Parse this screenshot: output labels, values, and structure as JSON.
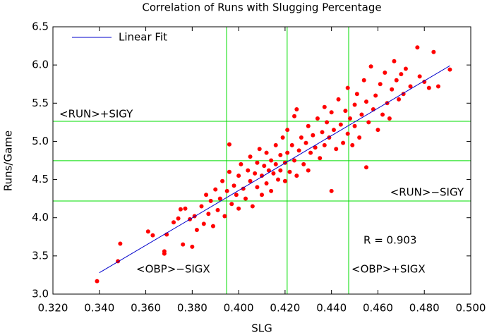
{
  "chart_data": {
    "type": "scatter",
    "title": "Correlation of Runs with Slugging Percentage",
    "x_label": "SLG",
    "y_label": "Runs/Game",
    "xlim": [
      0.32,
      0.5
    ],
    "ylim": [
      3.0,
      6.5
    ],
    "xticks": [
      {
        "value": 0.32,
        "label": "0.320"
      },
      {
        "value": 0.34,
        "label": "0.340"
      },
      {
        "value": 0.36,
        "label": "0.360"
      },
      {
        "value": 0.38,
        "label": "0.380"
      },
      {
        "value": 0.4,
        "label": "0.400"
      },
      {
        "value": 0.42,
        "label": "0.420"
      },
      {
        "value": 0.44,
        "label": "0.440"
      },
      {
        "value": 0.46,
        "label": "0.460"
      },
      {
        "value": 0.48,
        "label": "0.480"
      },
      {
        "value": 0.5,
        "label": "0.500"
      }
    ],
    "yticks": [
      {
        "value": 3,
        "label": "3.0"
      },
      3.5,
      {
        "value": 4,
        "label": "4.0"
      },
      4.5,
      {
        "value": 5,
        "label": "5.0"
      },
      5.5,
      {
        "value": 6,
        "label": "6.0"
      },
      6.5
    ],
    "color": "#ff0000",
    "x": [
      0.339,
      0.348,
      0.349,
      0.361,
      0.363,
      0.368,
      0.368,
      0.369,
      0.372,
      0.374,
      0.375,
      0.377,
      0.376,
      0.379,
      0.38,
      0.381,
      0.382,
      0.384,
      0.385,
      0.386,
      0.387,
      0.388,
      0.389,
      0.39,
      0.391,
      0.392,
      0.393,
      0.394,
      0.395,
      0.396,
      0.396,
      0.397,
      0.398,
      0.399,
      0.4,
      0.4,
      0.401,
      0.402,
      0.403,
      0.404,
      0.405,
      0.405,
      0.406,
      0.407,
      0.408,
      0.408,
      0.409,
      0.41,
      0.41,
      0.411,
      0.412,
      0.412,
      0.413,
      0.414,
      0.414,
      0.415,
      0.416,
      0.416,
      0.417,
      0.418,
      0.418,
      0.419,
      0.42,
      0.42,
      0.421,
      0.421,
      0.422,
      0.423,
      0.424,
      0.424,
      0.425,
      0.425,
      0.426,
      0.427,
      0.428,
      0.429,
      0.43,
      0.43,
      0.431,
      0.432,
      0.433,
      0.434,
      0.435,
      0.436,
      0.437,
      0.437,
      0.438,
      0.439,
      0.44,
      0.44,
      0.441,
      0.442,
      0.443,
      0.444,
      0.445,
      0.446,
      0.447,
      0.447,
      0.448,
      0.449,
      0.45,
      0.45,
      0.451,
      0.452,
      0.453,
      0.454,
      0.455,
      0.455,
      0.456,
      0.457,
      0.458,
      0.459,
      0.46,
      0.461,
      0.462,
      0.463,
      0.464,
      0.465,
      0.466,
      0.467,
      0.468,
      0.469,
      0.47,
      0.471,
      0.472,
      0.474,
      0.477,
      0.478,
      0.48,
      0.482,
      0.484,
      0.486,
      0.491
    ],
    "values": [
      3.17,
      3.43,
      3.66,
      3.82,
      3.77,
      3.53,
      3.56,
      3.78,
      3.94,
      3.99,
      4.11,
      4.12,
      3.65,
      3.98,
      3.62,
      4.02,
      3.84,
      4.15,
      3.92,
      4.3,
      4.05,
      4.22,
      3.89,
      4.37,
      4.1,
      4.25,
      4.48,
      4.02,
      4.35,
      4.96,
      4.6,
      4.18,
      4.42,
      4.3,
      4.55,
      4.12,
      4.7,
      4.38,
      4.25,
      4.62,
      4.48,
      4.8,
      4.15,
      4.58,
      4.4,
      4.72,
      4.9,
      4.55,
      4.3,
      4.68,
      4.45,
      4.85,
      4.62,
      4.75,
      4.35,
      4.58,
      4.95,
      4.7,
      4.5,
      4.82,
      4.62,
      5.05,
      4.72,
      4.48,
      5.15,
      4.85,
      4.6,
      4.95,
      5.33,
      4.75,
      5.42,
      4.55,
      4.88,
      5.05,
      4.7,
      4.98,
      5.2,
      4.62,
      4.85,
      5.08,
      4.92,
      5.3,
      4.78,
      5.12,
      5.45,
      4.95,
      5.25,
      5.05,
      4.35,
      5.38,
      5.15,
      4.9,
      5.55,
      5.22,
      4.98,
      5.4,
      5.7,
      5.1,
      5.3,
      4.95,
      5.48,
      5.2,
      5.62,
      5.05,
      5.35,
      5.8,
      4.66,
      5.52,
      5.25,
      5.98,
      5.42,
      5.6,
      5.15,
      5.75,
      5.35,
      5.9,
      5.5,
      5.3,
      5.68,
      6.05,
      5.8,
      5.55,
      5.88,
      5.62,
      5.95,
      5.72,
      6.23,
      5.85,
      5.78,
      5.7,
      6.17,
      5.72,
      5.94
    ],
    "fit": {
      "name": "Linear Fit",
      "color": "#0000cc",
      "x": [
        0.34,
        0.491
      ],
      "y": [
        3.28,
        5.99
      ]
    },
    "reference_color": "#00dd00",
    "reference_x": [
      0.3948,
      0.4209,
      0.4474
    ],
    "reference_y": [
      5.263,
      4.746,
      4.219
    ],
    "annotations": [
      "<RUN>+SIGY",
      "<RUN>−SIGY",
      "<OBP>−SIGX",
      "<OBP>+SIGX",
      "R =  0.903"
    ]
  }
}
